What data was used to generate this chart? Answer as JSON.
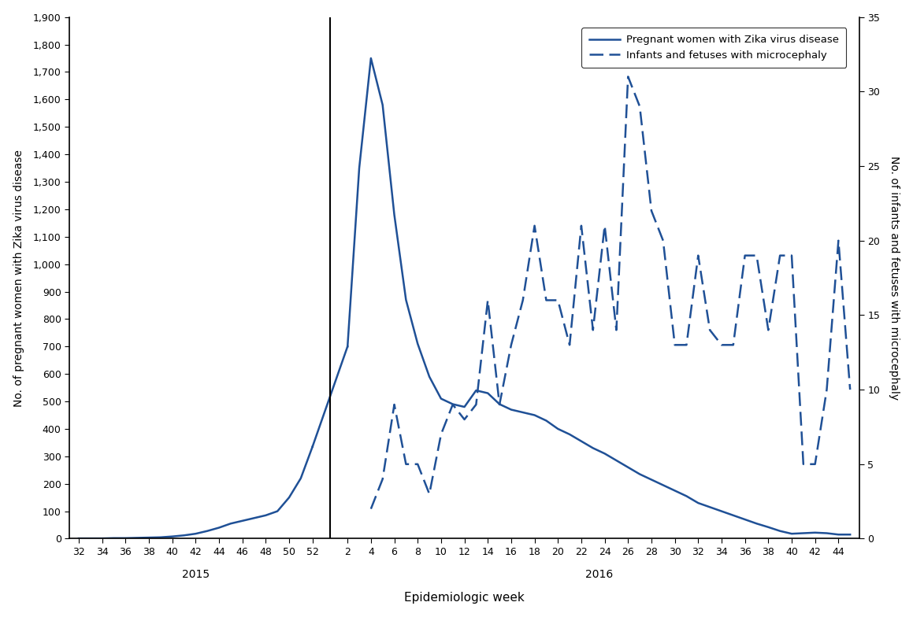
{
  "title": "",
  "xlabel": "Epidemiologic week",
  "ylabel_left": "No. of pregnant women with Zika virus disease",
  "ylabel_right": "No. of infants and fetuses with microcephaly",
  "line_color": "#1F5096",
  "background_color": "#ffffff",
  "legend_solid": "Pregnant women with Zika virus disease",
  "legend_dashed": "Infants and fetuses with microcephaly",
  "ylim_left": [
    0,
    1900
  ],
  "ylim_right": [
    0,
    35
  ],
  "yticks_left": [
    0,
    100,
    200,
    300,
    400,
    500,
    600,
    700,
    800,
    900,
    1000,
    1100,
    1200,
    1300,
    1400,
    1500,
    1600,
    1700,
    1800,
    1900
  ],
  "yticks_right": [
    0,
    5,
    10,
    15,
    20,
    25,
    30,
    35
  ],
  "weeks_2015": [
    32,
    33,
    34,
    35,
    36,
    37,
    38,
    39,
    40,
    41,
    42,
    43,
    44,
    45,
    46,
    47,
    48,
    49,
    50,
    51,
    52
  ],
  "pregnant_2015": [
    1,
    1,
    1,
    2,
    2,
    3,
    4,
    5,
    8,
    12,
    18,
    28,
    40,
    55,
    65,
    75,
    85,
    100,
    150,
    220,
    335
  ],
  "weeks_2016": [
    2,
    3,
    4,
    5,
    6,
    7,
    8,
    9,
    10,
    11,
    12,
    13,
    14,
    15,
    16,
    17,
    18,
    19,
    20,
    21,
    22,
    23,
    24,
    25,
    26,
    27,
    28,
    29,
    30,
    31,
    32,
    33,
    34,
    35,
    36,
    37,
    38,
    39,
    40,
    41,
    42,
    43,
    44,
    45
  ],
  "pregnant_2016": [
    700,
    1350,
    1750,
    1580,
    1180,
    870,
    710,
    590,
    510,
    490,
    480,
    540,
    530,
    490,
    470,
    460,
    450,
    430,
    400,
    380,
    355,
    330,
    310,
    285,
    260,
    235,
    215,
    195,
    175,
    155,
    130,
    115,
    100,
    85,
    70,
    55,
    42,
    28,
    18,
    20,
    22,
    20,
    15,
    15
  ],
  "microcephaly_weeks": [
    4,
    5,
    6,
    7,
    8,
    9,
    10,
    11,
    12,
    13,
    14,
    15,
    16,
    17,
    18,
    19,
    20,
    21,
    22,
    23,
    24,
    25,
    26,
    27,
    28,
    29,
    30,
    31,
    32,
    33,
    34,
    35,
    36,
    37,
    38,
    39,
    40,
    41,
    42,
    43,
    44,
    45
  ],
  "microcephaly": [
    2,
    4,
    9,
    5,
    5,
    3,
    7,
    9,
    8,
    9,
    16,
    9,
    13,
    16,
    21,
    16,
    16,
    13,
    21,
    14,
    21,
    14,
    31,
    29,
    22,
    20,
    13,
    13,
    19,
    14,
    13,
    13,
    19,
    19,
    14,
    19,
    19,
    5,
    5,
    10,
    20,
    10
  ]
}
